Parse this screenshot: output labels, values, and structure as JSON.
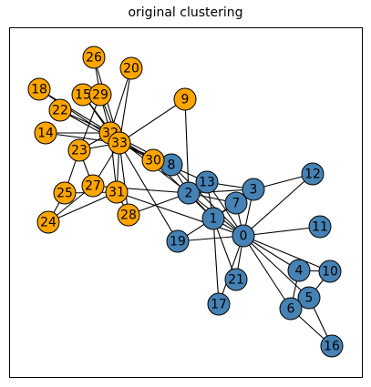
{
  "title": "original clustering",
  "colors": {
    "community_a": "#4682b4",
    "community_b": "#ffa500",
    "node_border": "#000000",
    "edge": "#000000"
  },
  "community_a_nodes": [
    0,
    1,
    2,
    3,
    4,
    5,
    6,
    7,
    8,
    10,
    11,
    12,
    13,
    16,
    17,
    19,
    21
  ],
  "community_b_nodes": [
    9,
    14,
    15,
    18,
    20,
    22,
    23,
    24,
    25,
    26,
    27,
    28,
    29,
    30,
    31,
    32,
    33
  ],
  "edges": [
    [
      0,
      1
    ],
    [
      0,
      2
    ],
    [
      0,
      3
    ],
    [
      0,
      4
    ],
    [
      0,
      5
    ],
    [
      0,
      6
    ],
    [
      0,
      7
    ],
    [
      0,
      8
    ],
    [
      0,
      10
    ],
    [
      0,
      11
    ],
    [
      0,
      12
    ],
    [
      0,
      13
    ],
    [
      0,
      17
    ],
    [
      0,
      19
    ],
    [
      0,
      21
    ],
    [
      0,
      31
    ],
    [
      1,
      2
    ],
    [
      1,
      3
    ],
    [
      1,
      7
    ],
    [
      1,
      13
    ],
    [
      1,
      17
    ],
    [
      1,
      19
    ],
    [
      1,
      21
    ],
    [
      1,
      30
    ],
    [
      2,
      3
    ],
    [
      2,
      7
    ],
    [
      2,
      8
    ],
    [
      2,
      9
    ],
    [
      2,
      13
    ],
    [
      2,
      27
    ],
    [
      2,
      28
    ],
    [
      2,
      32
    ],
    [
      3,
      7
    ],
    [
      3,
      12
    ],
    [
      3,
      13
    ],
    [
      4,
      6
    ],
    [
      4,
      10
    ],
    [
      5,
      6
    ],
    [
      5,
      10
    ],
    [
      5,
      16
    ],
    [
      6,
      16
    ],
    [
      8,
      30
    ],
    [
      8,
      32
    ],
    [
      8,
      33
    ],
    [
      9,
      33
    ],
    [
      13,
      33
    ],
    [
      14,
      32
    ],
    [
      14,
      33
    ],
    [
      15,
      32
    ],
    [
      15,
      33
    ],
    [
      18,
      32
    ],
    [
      18,
      33
    ],
    [
      19,
      33
    ],
    [
      20,
      32
    ],
    [
      20,
      33
    ],
    [
      22,
      32
    ],
    [
      22,
      33
    ],
    [
      23,
      25
    ],
    [
      23,
      27
    ],
    [
      23,
      29
    ],
    [
      23,
      32
    ],
    [
      23,
      33
    ],
    [
      24,
      25
    ],
    [
      24,
      27
    ],
    [
      24,
      31
    ],
    [
      25,
      31
    ],
    [
      26,
      29
    ],
    [
      26,
      33
    ],
    [
      27,
      33
    ],
    [
      28,
      31
    ],
    [
      28,
      33
    ],
    [
      29,
      32
    ],
    [
      29,
      33
    ],
    [
      30,
      32
    ],
    [
      30,
      33
    ],
    [
      31,
      32
    ],
    [
      31,
      33
    ],
    [
      32,
      33
    ]
  ]
}
